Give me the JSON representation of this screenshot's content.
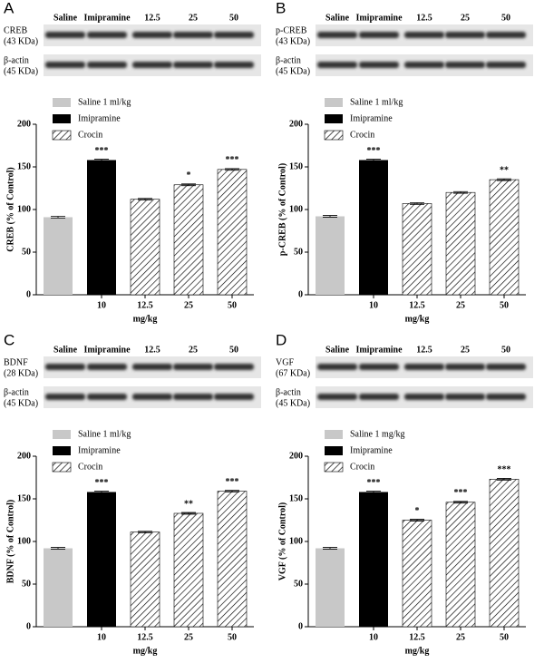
{
  "chart_data": [
    {
      "type": "bar",
      "panel": "A",
      "ylabel": "CREB (% of Control)",
      "xlabel": "mg/kg",
      "blot_lanes": [
        "Saline",
        "Imipramine",
        "12.5",
        "25",
        "50"
      ],
      "blot_rows": [
        {
          "label": "CREB",
          "sub": "(43 KDa)"
        },
        {
          "label": "β-actin",
          "sub": "(45 KDa)"
        }
      ],
      "categories": [
        null,
        "10",
        "12.5",
        "25",
        "50"
      ],
      "annotations": [
        null,
        "***",
        null,
        "*",
        "***"
      ],
      "series": [
        {
          "name": "Saline 1 ml/kg",
          "color": "#c8c8c8",
          "values": [
            91,
            null,
            null,
            null,
            null
          ],
          "errors": [
            1,
            null,
            null,
            null,
            null
          ]
        },
        {
          "name": "Imipramine",
          "color": "#000000",
          "values": [
            null,
            158,
            null,
            null,
            null
          ],
          "errors": [
            null,
            1,
            null,
            null,
            null
          ]
        },
        {
          "name": "Crocin",
          "color": "#000000",
          "hatch": true,
          "values": [
            null,
            null,
            112,
            129,
            147
          ],
          "errors": [
            null,
            null,
            1,
            1,
            1
          ]
        }
      ],
      "ylim": [
        0,
        200
      ],
      "yticks": [
        0,
        50,
        100,
        150,
        200
      ]
    },
    {
      "type": "bar",
      "panel": "B",
      "ylabel": "p-CREB (% of Control)",
      "xlabel": "mg/kg",
      "blot_lanes": [
        "Saline",
        "Imipramine",
        "12.5",
        "25",
        "50"
      ],
      "blot_rows": [
        {
          "label": "p-CREB",
          "sub": "(43 KDa)"
        },
        {
          "label": "β-actin",
          "sub": "(45 KDa)"
        }
      ],
      "categories": [
        null,
        "10",
        "12.5",
        "25",
        "50"
      ],
      "annotations": [
        null,
        "***",
        null,
        null,
        "**"
      ],
      "series": [
        {
          "name": "Saline 1 ml/kg",
          "color": "#c8c8c8",
          "values": [
            92,
            null,
            null,
            null,
            null
          ],
          "errors": [
            1,
            null,
            null,
            null,
            null
          ]
        },
        {
          "name": "Imipramine",
          "color": "#000000",
          "values": [
            null,
            158,
            null,
            null,
            null
          ],
          "errors": [
            null,
            1,
            null,
            null,
            null
          ]
        },
        {
          "name": "Crocin",
          "color": "#000000",
          "hatch": true,
          "values": [
            null,
            null,
            107,
            120,
            135
          ],
          "errors": [
            null,
            null,
            1,
            1,
            1
          ]
        }
      ],
      "ylim": [
        0,
        200
      ],
      "yticks": [
        0,
        50,
        100,
        150,
        200
      ]
    },
    {
      "type": "bar",
      "panel": "C",
      "ylabel": "BDNF (% of Control)",
      "xlabel": "mg/kg",
      "blot_lanes": [
        "Saline",
        "Imipramine",
        "12.5",
        "25",
        "50"
      ],
      "blot_rows": [
        {
          "label": "BDNF",
          "sub": "(28 KDa)"
        },
        {
          "label": "β-actin",
          "sub": "(45 KDa)"
        }
      ],
      "categories": [
        null,
        "10",
        "12.5",
        "25",
        "50"
      ],
      "annotations": [
        null,
        "***",
        null,
        "**",
        "***"
      ],
      "series": [
        {
          "name": "Saline 1 ml/kg",
          "color": "#c8c8c8",
          "values": [
            92,
            null,
            null,
            null,
            null
          ],
          "errors": [
            1,
            null,
            null,
            null,
            null
          ]
        },
        {
          "name": "Imipramine",
          "color": "#000000",
          "values": [
            null,
            158,
            null,
            null,
            null
          ],
          "errors": [
            null,
            1,
            null,
            null,
            null
          ]
        },
        {
          "name": "Crocin",
          "color": "#000000",
          "hatch": true,
          "values": [
            null,
            null,
            111,
            133,
            159
          ],
          "errors": [
            null,
            null,
            1,
            1,
            1
          ]
        }
      ],
      "ylim": [
        0,
        200
      ],
      "yticks": [
        0,
        50,
        100,
        150,
        200
      ]
    },
    {
      "type": "bar",
      "panel": "D",
      "ylabel": "VGF (% of Control)",
      "xlabel": "mg/kg",
      "blot_lanes": [
        "Saline",
        "Imipramine",
        "12.5",
        "25",
        "50"
      ],
      "blot_rows": [
        {
          "label": "VGF",
          "sub": "(67 KDa)"
        },
        {
          "label": "β-actin",
          "sub": "(45 KDa)"
        }
      ],
      "categories": [
        null,
        "10",
        "12.5",
        "25",
        "50"
      ],
      "annotations": [
        null,
        "***",
        "*",
        "***",
        "***"
      ],
      "series": [
        {
          "name": "Saline 1 mg/kg",
          "color": "#c8c8c8",
          "values": [
            92,
            null,
            null,
            null,
            null
          ],
          "errors": [
            1,
            null,
            null,
            null,
            null
          ]
        },
        {
          "name": "Imipramine",
          "color": "#000000",
          "values": [
            null,
            158,
            null,
            null,
            null
          ],
          "errors": [
            null,
            1,
            null,
            null,
            null
          ]
        },
        {
          "name": "Crocin",
          "color": "#000000",
          "hatch": true,
          "values": [
            null,
            null,
            125,
            146,
            173
          ],
          "errors": [
            null,
            null,
            1,
            1,
            1
          ]
        }
      ],
      "ylim": [
        0,
        200
      ],
      "yticks": [
        0,
        50,
        100,
        150,
        200
      ]
    }
  ]
}
